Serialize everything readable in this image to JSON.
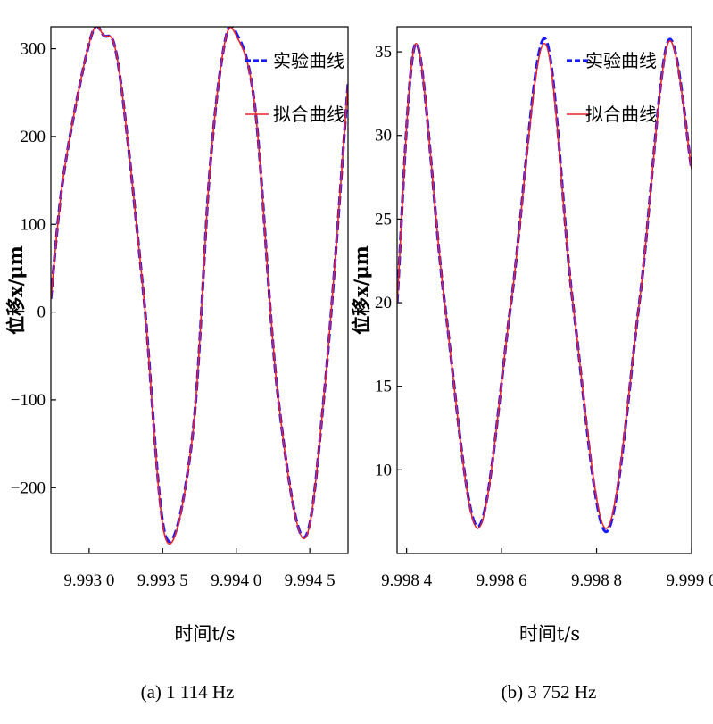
{
  "chart_data": [
    {
      "type": "line",
      "caption": "(a) 1 114 Hz",
      "xlabel": "时间t/s",
      "ylabel": "位移x/μm",
      "x_ticks": [
        9.993,
        9.9935,
        9.994,
        9.9945
      ],
      "x_tick_labels": [
        "9.993 0",
        "9.993 5",
        "9.994 0",
        "9.994 5"
      ],
      "y_ticks": [
        -200,
        -100,
        0,
        100,
        200,
        300
      ],
      "y_tick_labels": [
        "−200",
        "−100",
        "0",
        "100",
        "200",
        "300"
      ],
      "xlim": [
        9.99274,
        9.99476
      ],
      "ylim": [
        -275,
        325
      ],
      "grid": false,
      "legend_position": "top-right",
      "series": [
        {
          "name": "实验曲线",
          "color": "#1a1aff",
          "style": "dashed",
          "x": [
            9.99274,
            9.99283,
            9.99301,
            9.9931,
            9.9932,
            9.99337,
            9.99352,
            9.9937,
            9.99382,
            9.99392,
            9.994,
            9.99413,
            9.99428,
            9.99446,
            9.9946,
            9.99476
          ],
          "y": [
            15,
            160,
            312,
            315,
            280,
            20,
            -255,
            -145,
            160,
            305,
            318,
            230,
            -90,
            -257,
            -90,
            260
          ]
        },
        {
          "name": "拟合曲线",
          "color": "#e8222a",
          "style": "solid",
          "x": [
            9.99274,
            9.99283,
            9.99301,
            9.9931,
            9.9932,
            9.99337,
            9.99352,
            9.9937,
            9.99382,
            9.99392,
            9.994,
            9.99413,
            9.99428,
            9.99446,
            9.9946,
            9.99476
          ],
          "y": [
            15,
            160,
            312,
            315,
            280,
            20,
            -258,
            -145,
            160,
            305,
            315,
            230,
            -90,
            -258,
            -90,
            260
          ]
        }
      ]
    },
    {
      "type": "line",
      "caption": "(b) 3 752 Hz",
      "xlabel": "时间t/s",
      "ylabel": "位移x/μm",
      "x_ticks": [
        9.9984,
        9.9986,
        9.9988,
        9.999
      ],
      "x_tick_labels": [
        "9.998 4",
        "9.998 6",
        "9.998 8",
        "9.999 0"
      ],
      "y_ticks": [
        10,
        15,
        20,
        25,
        30,
        35
      ],
      "y_tick_labels": [
        "10",
        "15",
        "20",
        "25",
        "30",
        "35"
      ],
      "xlim": [
        9.99838,
        9.999
      ],
      "ylim": [
        5,
        36.5
      ],
      "grid": false,
      "legend_position": "top-right",
      "series": [
        {
          "name": "实验曲线",
          "color": "#1a1aff",
          "style": "dashed",
          "x": [
            9.99838,
            9.99842,
            9.99848,
            9.99855,
            9.99862,
            9.99869,
            9.99875,
            9.99882,
            9.99889,
            9.99895,
            9.999
          ],
          "y": [
            20,
            35.5,
            20,
            6.6,
            20,
            35.8,
            20,
            6.3,
            20,
            35.6,
            28
          ]
        },
        {
          "name": "拟合曲线",
          "color": "#e8222a",
          "style": "solid",
          "x": [
            9.99838,
            9.99842,
            9.99848,
            9.99855,
            9.99862,
            9.99869,
            9.99875,
            9.99882,
            9.99889,
            9.99895,
            9.999
          ],
          "y": [
            20,
            35.5,
            20,
            6.5,
            20,
            35.5,
            20,
            6.5,
            20,
            35.5,
            28
          ]
        }
      ]
    }
  ]
}
